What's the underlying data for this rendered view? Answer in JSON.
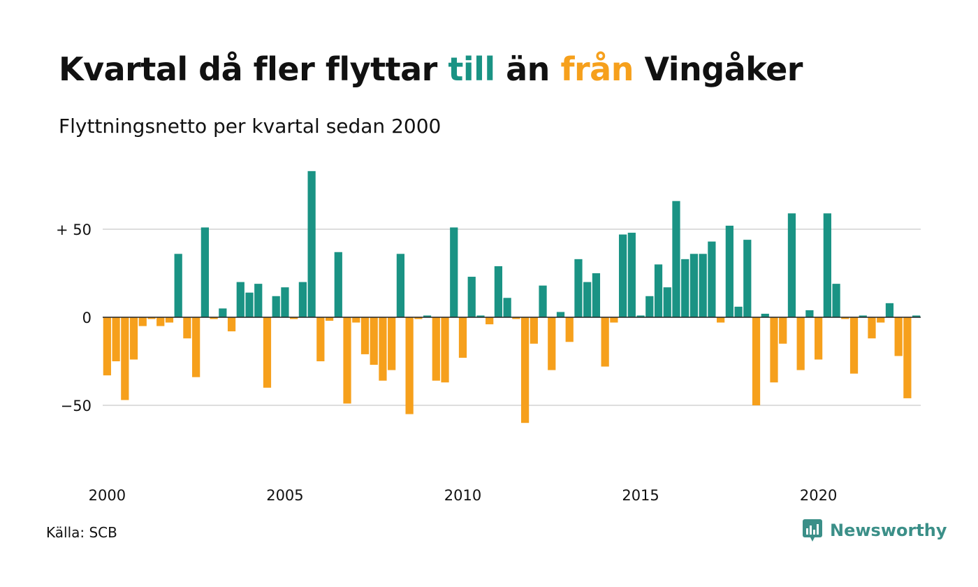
{
  "title": {
    "part1": "Kvartal då fler flyttar ",
    "till": "till",
    "part2": " än ",
    "fran": "från",
    "part3": " Vingåker"
  },
  "subtitle": "Flyttningsnetto per kvartal sedan 2000",
  "source": "Källa: SCB",
  "brand": {
    "name": "Newsworthy",
    "icon": "newsworthy-logo-icon"
  },
  "colors": {
    "positive": "#1a9384",
    "negative": "#f6a01c",
    "grid": "#dddddd",
    "axis": "#222222"
  },
  "chart_data": {
    "type": "bar",
    "x_start_year": 2000,
    "x_ticks": [
      2000,
      2005,
      2010,
      2015,
      2020
    ],
    "x_labels": [
      "2000",
      "2005",
      "2010",
      "2015",
      "2020"
    ],
    "y_ticks": [
      50,
      0,
      -50
    ],
    "y_labels": [
      "+ 50",
      "0",
      "−50"
    ],
    "ylim": [
      -80,
      85
    ],
    "grid": true,
    "values": [
      -33,
      -25,
      -47,
      -24,
      -5,
      -1,
      -5,
      -3,
      36,
      -12,
      -34,
      51,
      -1,
      5,
      -8,
      20,
      14,
      19,
      -40,
      12,
      17,
      -1,
      20,
      83,
      -25,
      -2,
      37,
      -49,
      -3,
      -21,
      -27,
      -36,
      -30,
      36,
      -55,
      -1,
      1,
      -36,
      -37,
      51,
      -23,
      23,
      1,
      -4,
      29,
      11,
      -1,
      -60,
      -15,
      18,
      -30,
      3,
      -14,
      33,
      20,
      25,
      -28,
      -3,
      47,
      48,
      1,
      12,
      30,
      17,
      66,
      33,
      36,
      36,
      43,
      -3,
      52,
      6,
      44,
      -50,
      2,
      -37,
      -15,
      59,
      -30,
      4,
      -24,
      59,
      19,
      -1,
      -32,
      1,
      -12,
      -3,
      8,
      -22,
      -46,
      1
    ]
  }
}
